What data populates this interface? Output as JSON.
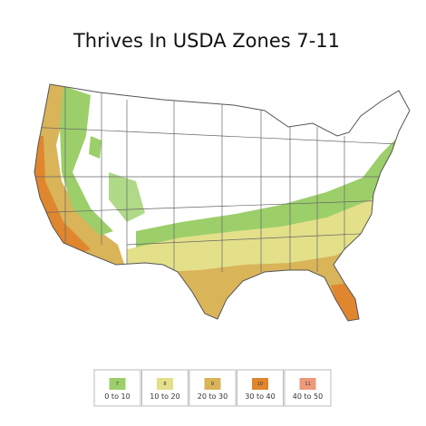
{
  "title": "Thrives In USDA Zones 7-11",
  "legend": [
    {
      "zone": "7",
      "range": "0 to 10",
      "color": "#9ccf6a"
    },
    {
      "zone": "8",
      "range": "10 to 20",
      "color": "#e4e08a"
    },
    {
      "zone": "9",
      "range": "20 to 30",
      "color": "#d9b459"
    },
    {
      "zone": "10",
      "range": "30 to 40",
      "color": "#e0862f"
    },
    {
      "zone": "11",
      "range": "40 to 50",
      "color": "#ee9a7a"
    }
  ]
}
